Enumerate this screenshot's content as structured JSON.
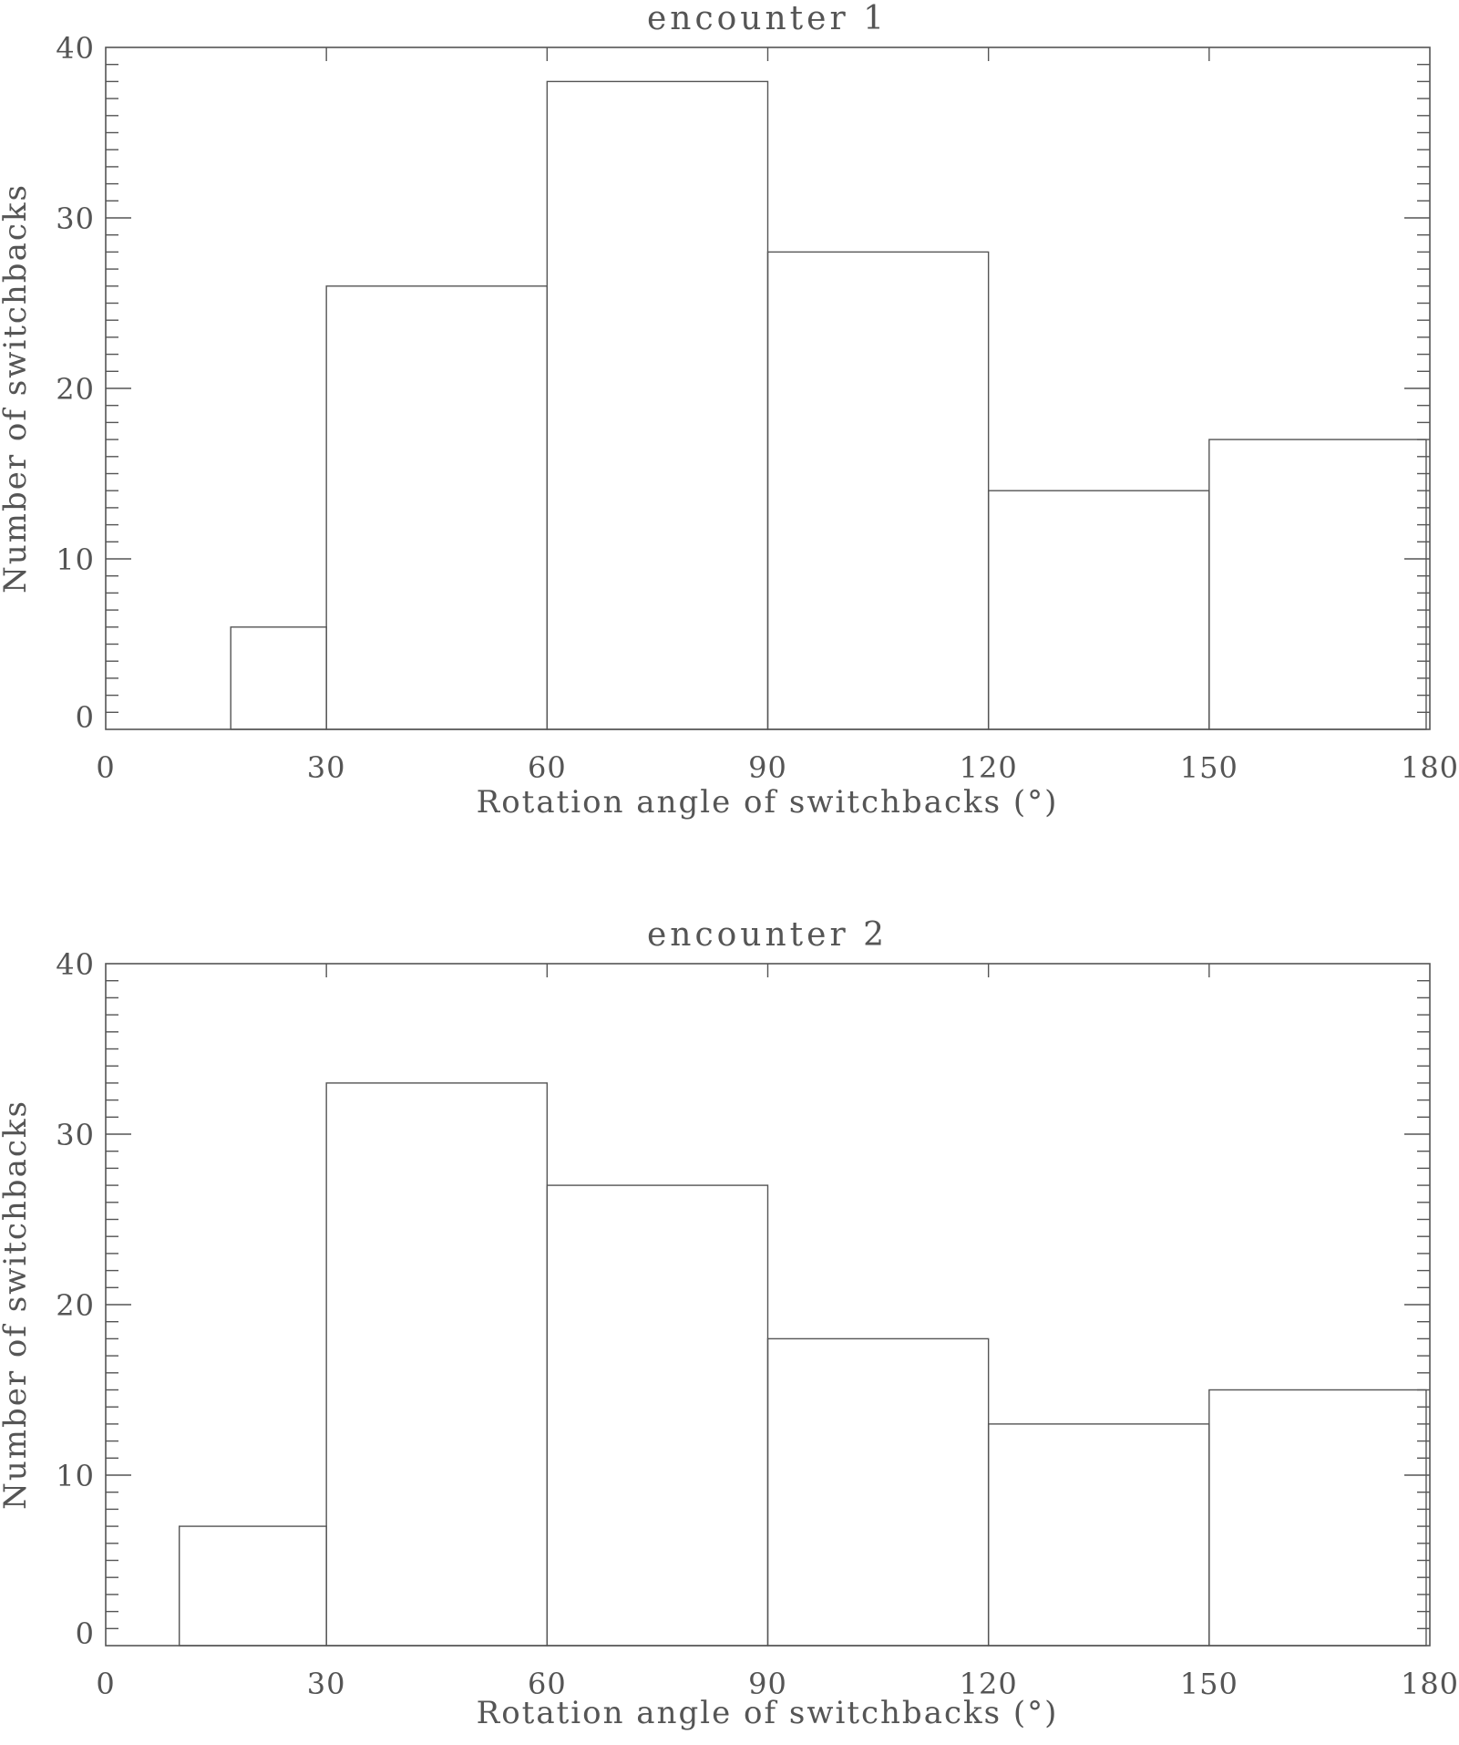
{
  "chart_data": [
    {
      "type": "bar",
      "subtype": "histogram",
      "title": "encounter 1",
      "xlabel": "Rotation angle of switchbacks (°)",
      "ylabel": "Number of switchbacks",
      "xlim": [
        0,
        180
      ],
      "ylim": [
        0,
        40
      ],
      "xticks": [
        0,
        30,
        60,
        90,
        120,
        150,
        180
      ],
      "yticks": [
        0,
        10,
        20,
        30,
        40
      ],
      "grid": false,
      "bins": [
        {
          "x0": 17,
          "x1": 30,
          "value": 6
        },
        {
          "x0": 30,
          "x1": 60,
          "value": 26
        },
        {
          "x0": 60,
          "x1": 90,
          "value": 38
        },
        {
          "x0": 90,
          "x1": 120,
          "value": 28
        },
        {
          "x0": 120,
          "x1": 150,
          "value": 14
        },
        {
          "x0": 150,
          "x1": 179.5,
          "value": 17
        }
      ],
      "categories": [
        "17-30",
        "30-60",
        "60-90",
        "90-120",
        "120-150",
        "150-180"
      ],
      "values": [
        6,
        26,
        38,
        28,
        14,
        17
      ]
    },
    {
      "type": "bar",
      "subtype": "histogram",
      "title": "encounter 2",
      "xlabel": "Rotation angle of switchbacks (°)",
      "ylabel": "Number of switchbacks",
      "xlim": [
        0,
        180
      ],
      "ylim": [
        0,
        40
      ],
      "xticks": [
        0,
        30,
        60,
        90,
        120,
        150,
        180
      ],
      "yticks": [
        0,
        10,
        20,
        30,
        40
      ],
      "grid": false,
      "bins": [
        {
          "x0": 10,
          "x1": 30,
          "value": 7
        },
        {
          "x0": 30,
          "x1": 60,
          "value": 33
        },
        {
          "x0": 60,
          "x1": 90,
          "value": 27
        },
        {
          "x0": 90,
          "x1": 120,
          "value": 18
        },
        {
          "x0": 120,
          "x1": 150,
          "value": 13
        },
        {
          "x0": 150,
          "x1": 179.5,
          "value": 15
        }
      ],
      "categories": [
        "10-30",
        "30-60",
        "60-90",
        "90-120",
        "120-150",
        "150-180"
      ],
      "values": [
        7,
        33,
        27,
        18,
        13,
        15
      ]
    }
  ],
  "panels": [
    {
      "title": "encounter 1",
      "xlabel": "Rotation angle of switchbacks (°)",
      "ylabel": "Number of switchbacks"
    },
    {
      "title": "encounter 2",
      "xlabel": "Rotation angle of switchbacks (°)",
      "ylabel": "Number of switchbacks"
    }
  ]
}
